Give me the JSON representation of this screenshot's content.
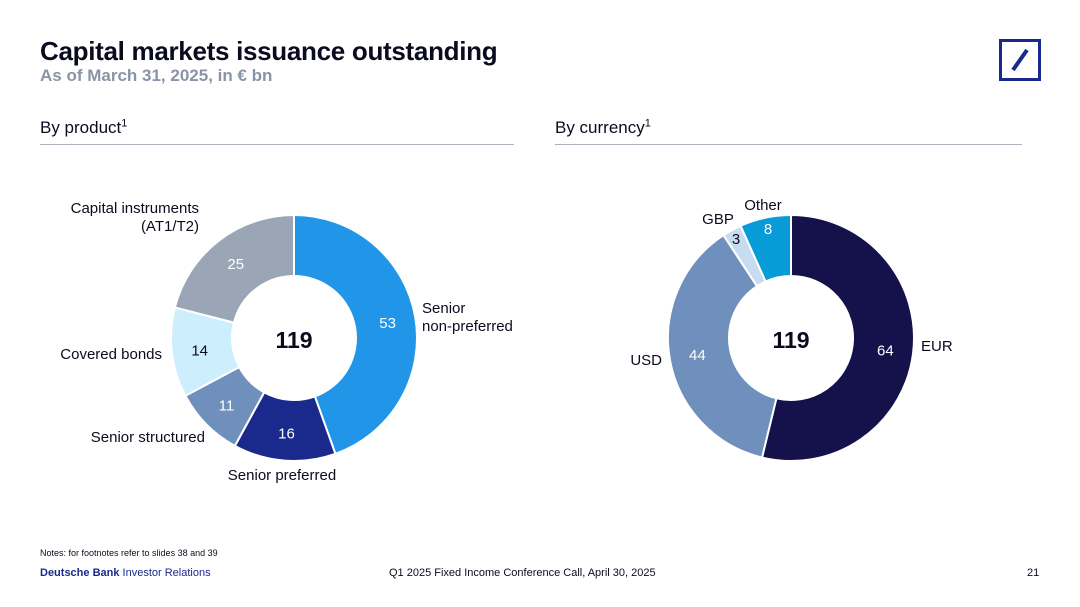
{
  "header": {
    "title": "Capital markets issuance outstanding",
    "subtitle": "As of March 31, 2025, in € bn"
  },
  "colors": {
    "navy": "#15114a",
    "blue": "#1a2a8c",
    "bright_blue": "#2196e8",
    "light_blue": "#cdeefd",
    "steel_blue": "#6f8fbc",
    "grey": "#9aa6b6",
    "cyan": "#079bd8",
    "pale": "#c8dcef"
  },
  "logo": {
    "icon": "deutsche-bank-logo-icon"
  },
  "sections": {
    "product": {
      "title": "By product",
      "footnote_mark": "1"
    },
    "currency": {
      "title": "By currency",
      "footnote_mark": "1"
    }
  },
  "chart_data": [
    {
      "type": "pie",
      "variant": "donut",
      "total_label": "119",
      "slices": [
        {
          "label": "Senior non-preferred",
          "value": 53,
          "color": "#2196e8"
        },
        {
          "label": "Senior preferred",
          "value": 16,
          "color": "#1a2a8c"
        },
        {
          "label": "Senior structured",
          "value": 11,
          "color": "#6f8fbc"
        },
        {
          "label": "Covered bonds",
          "value": 14,
          "color": "#cdeefd"
        },
        {
          "label": "Capital instruments (AT1/T2)",
          "value": 25,
          "color": "#9aa6b6"
        }
      ]
    },
    {
      "type": "pie",
      "variant": "donut",
      "total_label": "119",
      "slices": [
        {
          "label": "EUR",
          "value": 64,
          "color": "#15114a"
        },
        {
          "label": "USD",
          "value": 44,
          "color": "#6f8fbc"
        },
        {
          "label": "GBP",
          "value": 3,
          "color": "#c8dcef"
        },
        {
          "label": "Other",
          "value": 8,
          "color": "#079bd8"
        }
      ]
    }
  ],
  "footer": {
    "notes": "Notes: for footnotes refer to slides 38 and 39",
    "brand_bold": "Deutsche Bank",
    "brand_rest": " Investor Relations",
    "event": "Q1 2025 Fixed Income Conference Call, April 30, 2025",
    "page": "21"
  }
}
